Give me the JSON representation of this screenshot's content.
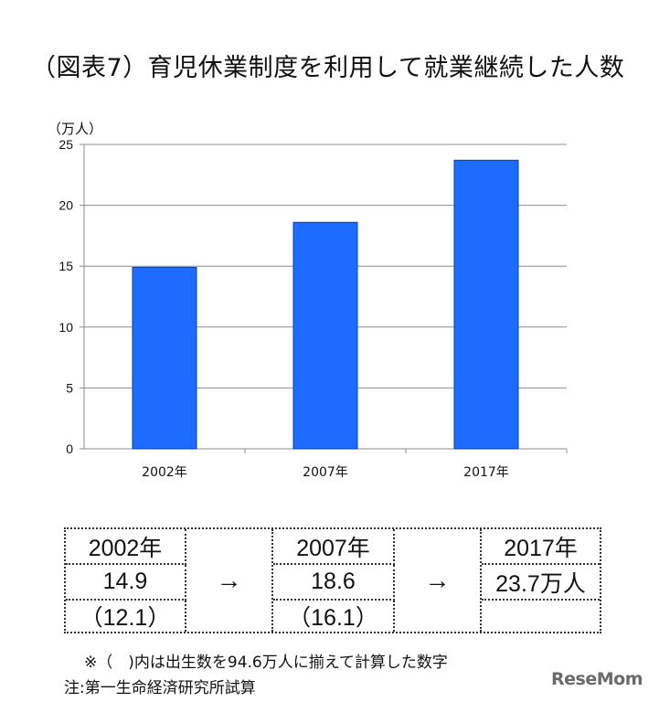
{
  "title": "（図表7）育児休業制度を利用して就業継続した人数",
  "chart_data": {
    "type": "bar",
    "unit_label": "（万人）",
    "categories": [
      "2002年",
      "2007年",
      "2017年"
    ],
    "values": [
      14.9,
      18.6,
      23.7
    ],
    "ylim": [
      0,
      25
    ],
    "yticks": [
      0,
      5,
      10,
      15,
      20,
      25
    ],
    "grid": true,
    "bar_color": "#1e6bff"
  },
  "table": {
    "col1": {
      "year": "2002年",
      "value": "14.9",
      "adjusted": "（12.1）"
    },
    "arrow1": "→",
    "col2": {
      "year": "2007年",
      "value": "18.6",
      "adjusted": "（16.1）"
    },
    "arrow2": "→",
    "col3": {
      "year": "2017年",
      "value": "23.7万人",
      "adjusted": ""
    }
  },
  "notes": {
    "note1": "※（　)内は出生数を94.6万人に揃えて計算した数字",
    "note2": "注:第一生命経済研究所試算"
  },
  "logo": "ReseMom"
}
